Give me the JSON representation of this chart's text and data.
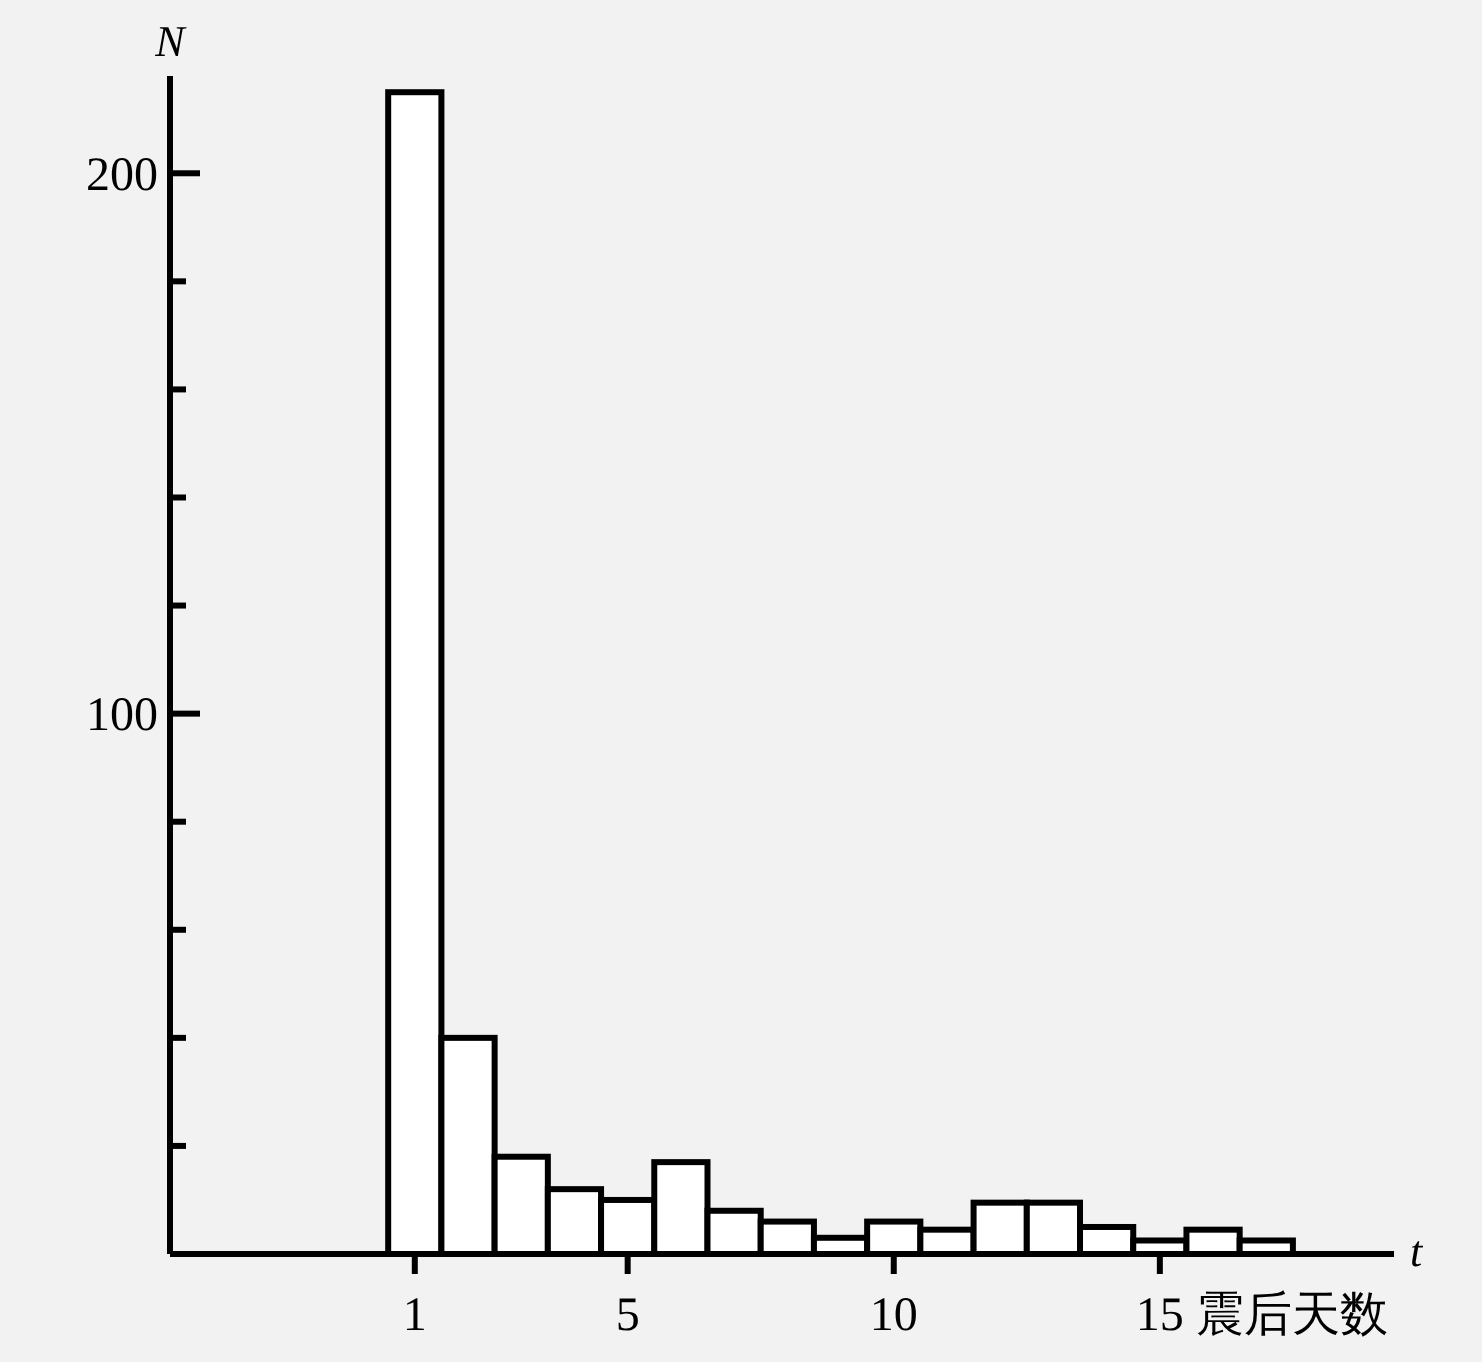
{
  "chart_data": {
    "type": "histogram",
    "xlabel": "t",
    "ylabel": "N",
    "annotations": [
      "震后天数"
    ],
    "bins": [
      0.5,
      1.5,
      2.5,
      3.5,
      4.5,
      5.5,
      6.5,
      7.5,
      8.5,
      9.5,
      10.5,
      11.5,
      12.5,
      13.5,
      14.5,
      15.5,
      16.5,
      17.5
    ],
    "values": [
      215,
      40,
      18,
      12,
      10,
      17,
      8,
      6,
      3,
      6,
      4.5,
      9.5,
      9.5,
      5,
      2.5,
      4.5,
      2.5
    ],
    "color": "#ffffff",
    "xlim": [
      -3.6,
      19.4
    ],
    "xticks": [
      1,
      5,
      10,
      15
    ],
    "ylim": [
      0,
      218
    ],
    "yticks": [
      {
        "value": 20,
        "label": null
      },
      {
        "value": 40,
        "label": null
      },
      {
        "value": 60,
        "label": null
      },
      {
        "value": 80,
        "label": null
      },
      100,
      {
        "value": 120,
        "label": null
      },
      {
        "value": 140,
        "label": null
      },
      {
        "value": 160,
        "label": null
      },
      {
        "value": 180,
        "label": null
      },
      200
    ],
    "grid": false
  }
}
